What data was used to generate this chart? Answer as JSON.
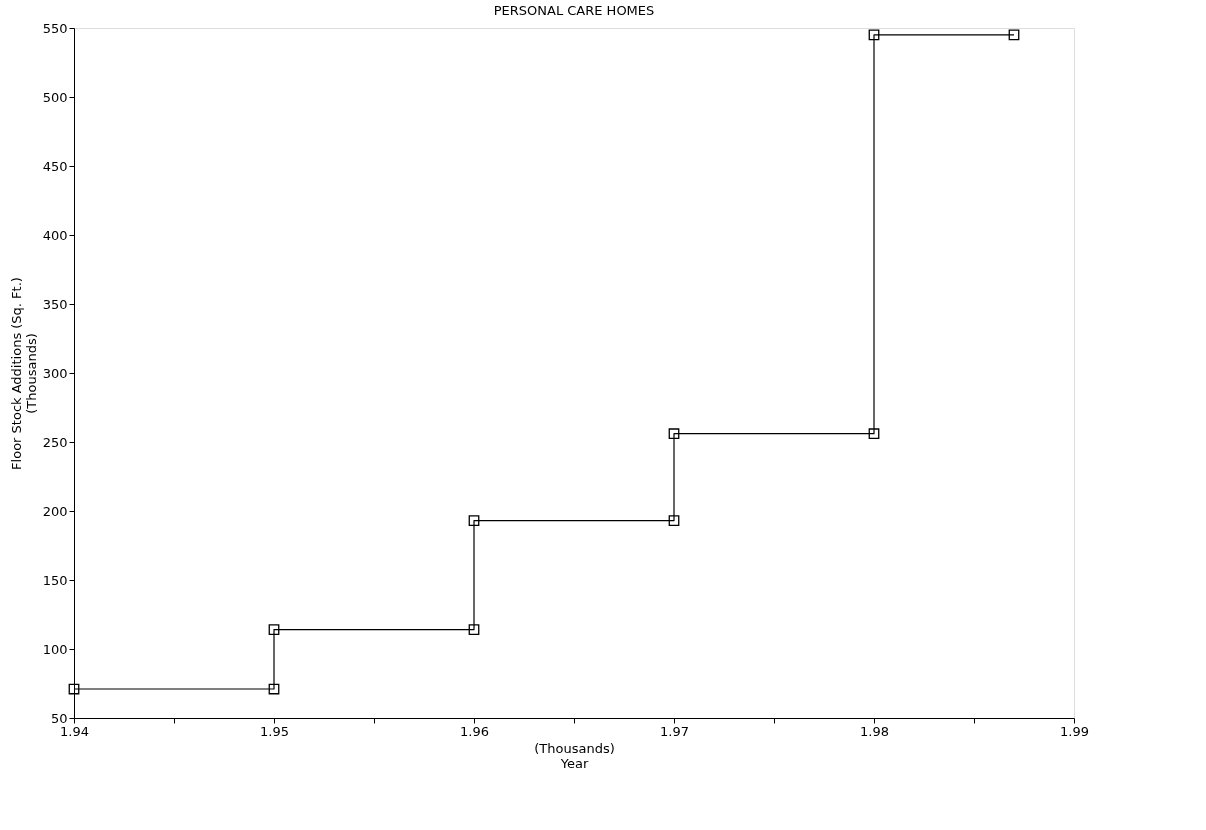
{
  "chart_data": {
    "type": "line",
    "title": "PERSONAL CARE HOMES",
    "xlabel": "(Thousands)\nYear",
    "ylabel": "Floor Stock Additions (Sq. Ft.)\n(Thousands)",
    "x": [
      1.94,
      1.95,
      1.95,
      1.96,
      1.96,
      1.97,
      1.97,
      1.98,
      1.98,
      1.987
    ],
    "series": [
      {
        "color": "#000000",
        "values": [
          71,
          71,
          114,
          114,
          193,
          193,
          256,
          256,
          545,
          545
        ]
      }
    ],
    "xlim": [
      1.94,
      1.99
    ],
    "xticks": [
      1.94,
      {
        "value": 1.945,
        "label": null
      },
      1.95,
      {
        "value": 1.955,
        "label": null
      },
      1.96,
      {
        "value": 1.965,
        "label": null
      },
      1.97,
      {
        "value": 1.975,
        "label": null
      },
      1.98,
      {
        "value": 1.985,
        "label": null
      },
      1.99
    ],
    "ylim": [
      50,
      550
    ],
    "yticks": [
      50,
      100,
      150,
      200,
      250,
      300,
      350,
      400,
      450,
      500,
      550
    ],
    "grid": false,
    "marker": "square",
    "line_style": "solid"
  }
}
